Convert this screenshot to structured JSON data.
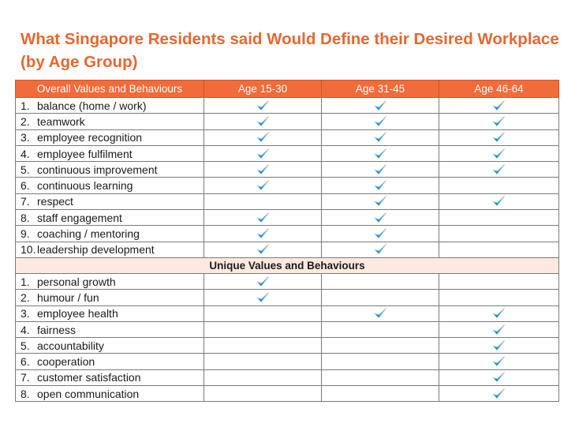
{
  "title": "What Singapore Residents said Would Define their Desired Workplace (by Age Group)",
  "columns": [
    "Overall Values and Behaviours",
    "Age 15-30",
    "Age 31-45",
    "Age 46-64"
  ],
  "overall_rows": [
    {
      "num": "1.",
      "label": "balance (home / work)",
      "checks": [
        true,
        true,
        true
      ]
    },
    {
      "num": "2.",
      "label": "teamwork",
      "checks": [
        true,
        true,
        true
      ]
    },
    {
      "num": "3.",
      "label": "employee recognition",
      "checks": [
        true,
        true,
        true
      ]
    },
    {
      "num": "4.",
      "label": "employee fulfilment",
      "checks": [
        true,
        true,
        true
      ]
    },
    {
      "num": "5.",
      "label": "continuous improvement",
      "checks": [
        true,
        true,
        true
      ]
    },
    {
      "num": "6.",
      "label": "continuous learning",
      "checks": [
        true,
        true,
        false
      ]
    },
    {
      "num": "7.",
      "label": "respect",
      "checks": [
        false,
        true,
        true
      ]
    },
    {
      "num": "8.",
      "label": "staff engagement",
      "checks": [
        true,
        true,
        false
      ]
    },
    {
      "num": "9.",
      "label": "coaching / mentoring",
      "checks": [
        true,
        true,
        false
      ]
    },
    {
      "num": "10.",
      "label": "leadership development",
      "checks": [
        true,
        true,
        false
      ]
    }
  ],
  "unique_header": "Unique Values and Behaviours",
  "unique_rows": [
    {
      "num": "1.",
      "label": "personal growth",
      "checks": [
        true,
        false,
        false
      ]
    },
    {
      "num": "2.",
      "label": "humour / fun",
      "checks": [
        true,
        false,
        false
      ]
    },
    {
      "num": "3.",
      "label": "employee health",
      "checks": [
        false,
        true,
        true
      ]
    },
    {
      "num": "4.",
      "label": "fairness",
      "checks": [
        false,
        false,
        true
      ]
    },
    {
      "num": "5.",
      "label": "accountability",
      "checks": [
        false,
        false,
        true
      ]
    },
    {
      "num": "6.",
      "label": "cooperation",
      "checks": [
        false,
        false,
        true
      ]
    },
    {
      "num": "7.",
      "label": "customer satisfaction",
      "checks": [
        false,
        false,
        true
      ]
    },
    {
      "num": "8.",
      "label": "open communication",
      "checks": [
        false,
        false,
        true
      ]
    }
  ],
  "colors": {
    "title": "#e8672f",
    "header": "#f26b3a",
    "subheader": "#fde9df",
    "check": "#1e7fc4"
  },
  "check_icon": "checkmark-icon"
}
